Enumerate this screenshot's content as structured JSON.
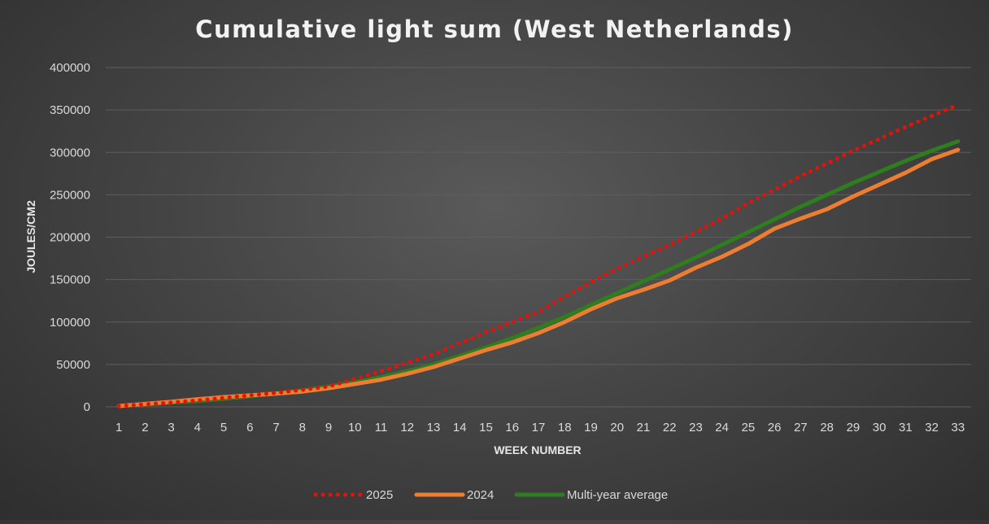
{
  "chart_data": {
    "type": "line",
    "title": "Cumulative light sum (West Netherlands)",
    "xlabel": "WEEK NUMBER",
    "ylabel": "JOULES/CM2",
    "ylim": [
      0,
      400000
    ],
    "yticks": [
      "0",
      "50000",
      "100000",
      "150000",
      "200000",
      "250000",
      "300000",
      "350000",
      "400000"
    ],
    "categories": [
      "1",
      "2",
      "3",
      "4",
      "5",
      "6",
      "7",
      "8",
      "9",
      "10",
      "11",
      "12",
      "13",
      "14",
      "15",
      "16",
      "17",
      "18",
      "19",
      "20",
      "21",
      "22",
      "23",
      "24",
      "25",
      "26",
      "27",
      "28",
      "29",
      "30",
      "31",
      "32",
      "33"
    ],
    "grid": true,
    "legend_position": "bottom",
    "series": [
      {
        "name": "2025",
        "color": "#e3120b",
        "style": "dotted",
        "values": [
          1000,
          3000,
          5000,
          7500,
          10500,
          13500,
          16500,
          20000,
          24000,
          33000,
          42000,
          52000,
          62000,
          75000,
          88000,
          100000,
          112000,
          130000,
          147000,
          163000,
          177000,
          191000,
          206000,
          222000,
          240000,
          256000,
          272000,
          287000,
          302000,
          316000,
          330000,
          343000,
          356000
        ]
      },
      {
        "name": "2024",
        "color": "#ed7d31",
        "style": "solid",
        "values": [
          1000,
          3500,
          6000,
          9000,
          11500,
          13500,
          15500,
          18000,
          22000,
          27000,
          32000,
          39000,
          47000,
          57000,
          67000,
          76000,
          87000,
          100000,
          115000,
          128000,
          138000,
          149000,
          164000,
          177000,
          192000,
          210000,
          222000,
          233000,
          248000,
          262000,
          276000,
          292000,
          303000
        ]
      },
      {
        "name": "Multi-year average",
        "color": "#2e7d1e",
        "style": "solid",
        "values": [
          1000,
          3000,
          5000,
          7000,
          9500,
          12500,
          16000,
          19500,
          24000,
          29000,
          35000,
          42000,
          50000,
          60000,
          70000,
          81000,
          93000,
          106000,
          120000,
          134000,
          148000,
          162000,
          176000,
          191000,
          206000,
          221000,
          236000,
          250000,
          264000,
          277000,
          290000,
          302000,
          313000
        ]
      }
    ]
  }
}
